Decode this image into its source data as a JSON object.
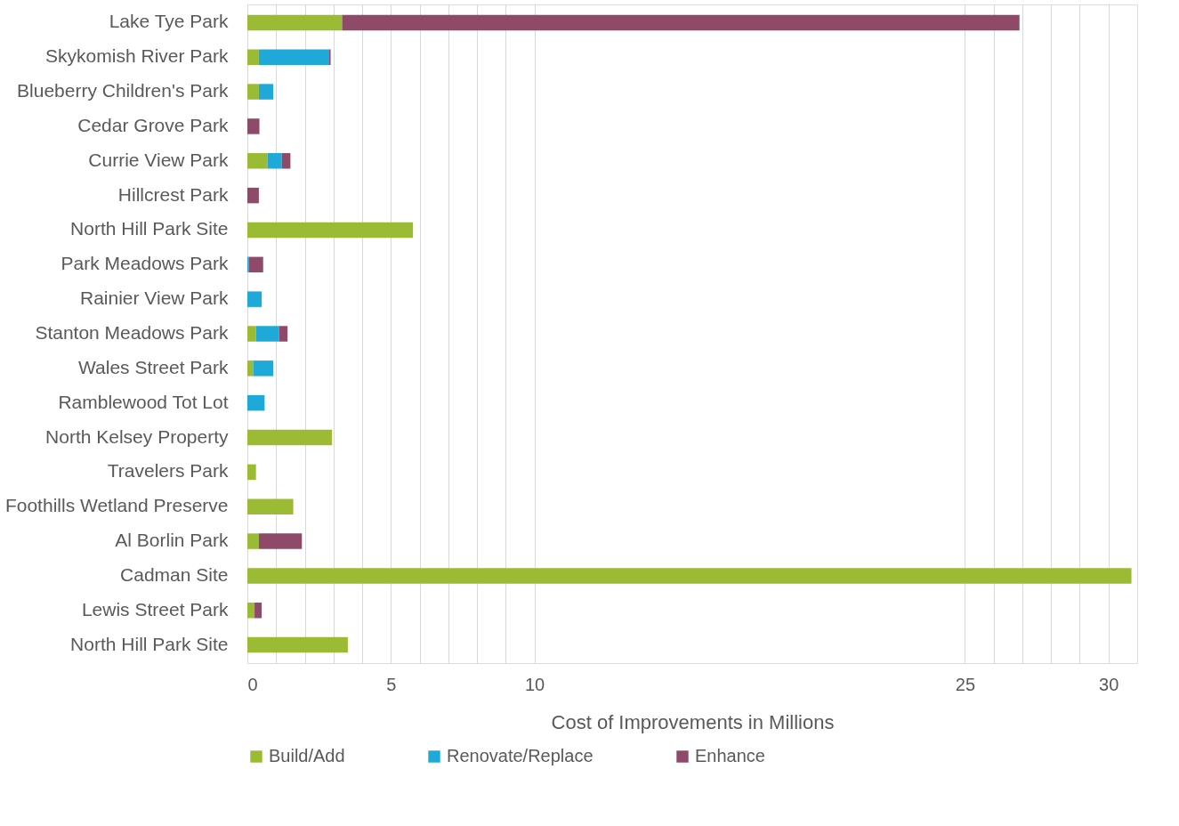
{
  "chart_data": {
    "type": "bar",
    "orientation": "horizontal",
    "stacked": true,
    "categories": [
      "Lake Tye Park",
      "Skykomish River Park",
      "Blueberry Children's Park",
      "Cedar Grove Park",
      "Currie View Park",
      "Hillcrest Park",
      "North Hill Park Site",
      "Park Meadows Park",
      "Rainier View Park",
      "Stanton Meadows Park",
      "Wales Street Park",
      "Ramblewood Tot Lot",
      "North Kelsey Property",
      "Travelers Park",
      "Foothills Wetland Preserve",
      "Al Borlin Park",
      "Cadman Site",
      "Lewis Street Park",
      "North Hill Park Site"
    ],
    "series": [
      {
        "name": "Build/Add",
        "color": "#9bbb34",
        "values": [
          3.3,
          0.4,
          0.4,
          0,
          0.7,
          0,
          5.77,
          0,
          0,
          0.3,
          0.2,
          0,
          2.95,
          0.3,
          1.6,
          0.4,
          30.8,
          0.25,
          3.5
        ]
      },
      {
        "name": "Renovate/Replace",
        "color": "#1fa9d9",
        "values": [
          0,
          2.45,
          0.5,
          0,
          0.5,
          0,
          0,
          0.05,
          0.5,
          0.8,
          0.7,
          0.6,
          0,
          0,
          0,
          0,
          0,
          0,
          0
        ]
      },
      {
        "name": "Enhance",
        "color": "#8f4a6a",
        "values": [
          23.6,
          0.05,
          0,
          0.42,
          0.3,
          0.4,
          0,
          0.5,
          0,
          0.3,
          0,
          0,
          0,
          0,
          0,
          1.5,
          0,
          0.25,
          0
        ]
      }
    ],
    "xlabel": "Cost of Improvements in Millions",
    "xlim": [
      0,
      31
    ],
    "xticks": [
      0,
      {
        "value": 1,
        "label": null
      },
      {
        "value": 2,
        "label": null
      },
      {
        "value": 3,
        "label": null
      },
      {
        "value": 4,
        "label": null
      },
      5,
      {
        "value": 6,
        "label": null
      },
      {
        "value": 7,
        "label": null
      },
      {
        "value": 8,
        "label": null
      },
      {
        "value": 9,
        "label": null
      },
      10,
      25,
      {
        "value": 26,
        "label": null
      },
      {
        "value": 27,
        "label": null
      },
      {
        "value": 28,
        "label": null
      },
      {
        "value": 29,
        "label": null
      },
      30
    ],
    "grid": "x",
    "legend": "bottom"
  }
}
